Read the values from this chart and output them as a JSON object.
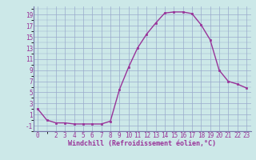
{
  "x": [
    0,
    1,
    2,
    3,
    4,
    5,
    6,
    7,
    8,
    9,
    10,
    11,
    12,
    13,
    14,
    15,
    16,
    17,
    18,
    19,
    20,
    21,
    22,
    23
  ],
  "y": [
    2,
    0,
    -0.5,
    -0.5,
    -0.7,
    -0.7,
    -0.7,
    -0.7,
    -0.2,
    5.5,
    9.5,
    13,
    15.5,
    17.5,
    19.3,
    19.5,
    19.5,
    19.2,
    17.2,
    14.5,
    9,
    7,
    6.5,
    5.8
  ],
  "line_color": "#993399",
  "marker": "s",
  "marker_size": 2.0,
  "bg_color": "#cce8e8",
  "grid_color": "#99aacc",
  "xlabel": "Windchill (Refroidissement éolien,°C)",
  "xlabel_color": "#993399",
  "tick_color": "#993399",
  "ylim": [
    -2.0,
    20.5
  ],
  "xlim": [
    -0.5,
    23.5
  ],
  "yticks": [
    -1,
    1,
    3,
    5,
    7,
    9,
    11,
    13,
    15,
    17,
    19
  ],
  "xticks": [
    0,
    2,
    3,
    4,
    5,
    6,
    7,
    8,
    9,
    10,
    11,
    12,
    13,
    14,
    15,
    16,
    17,
    18,
    19,
    20,
    21,
    22,
    23
  ],
  "tick_fontsize": 5.5,
  "xlabel_fontsize": 6.0,
  "spine_color": "#7777aa",
  "linewidth": 1.0
}
